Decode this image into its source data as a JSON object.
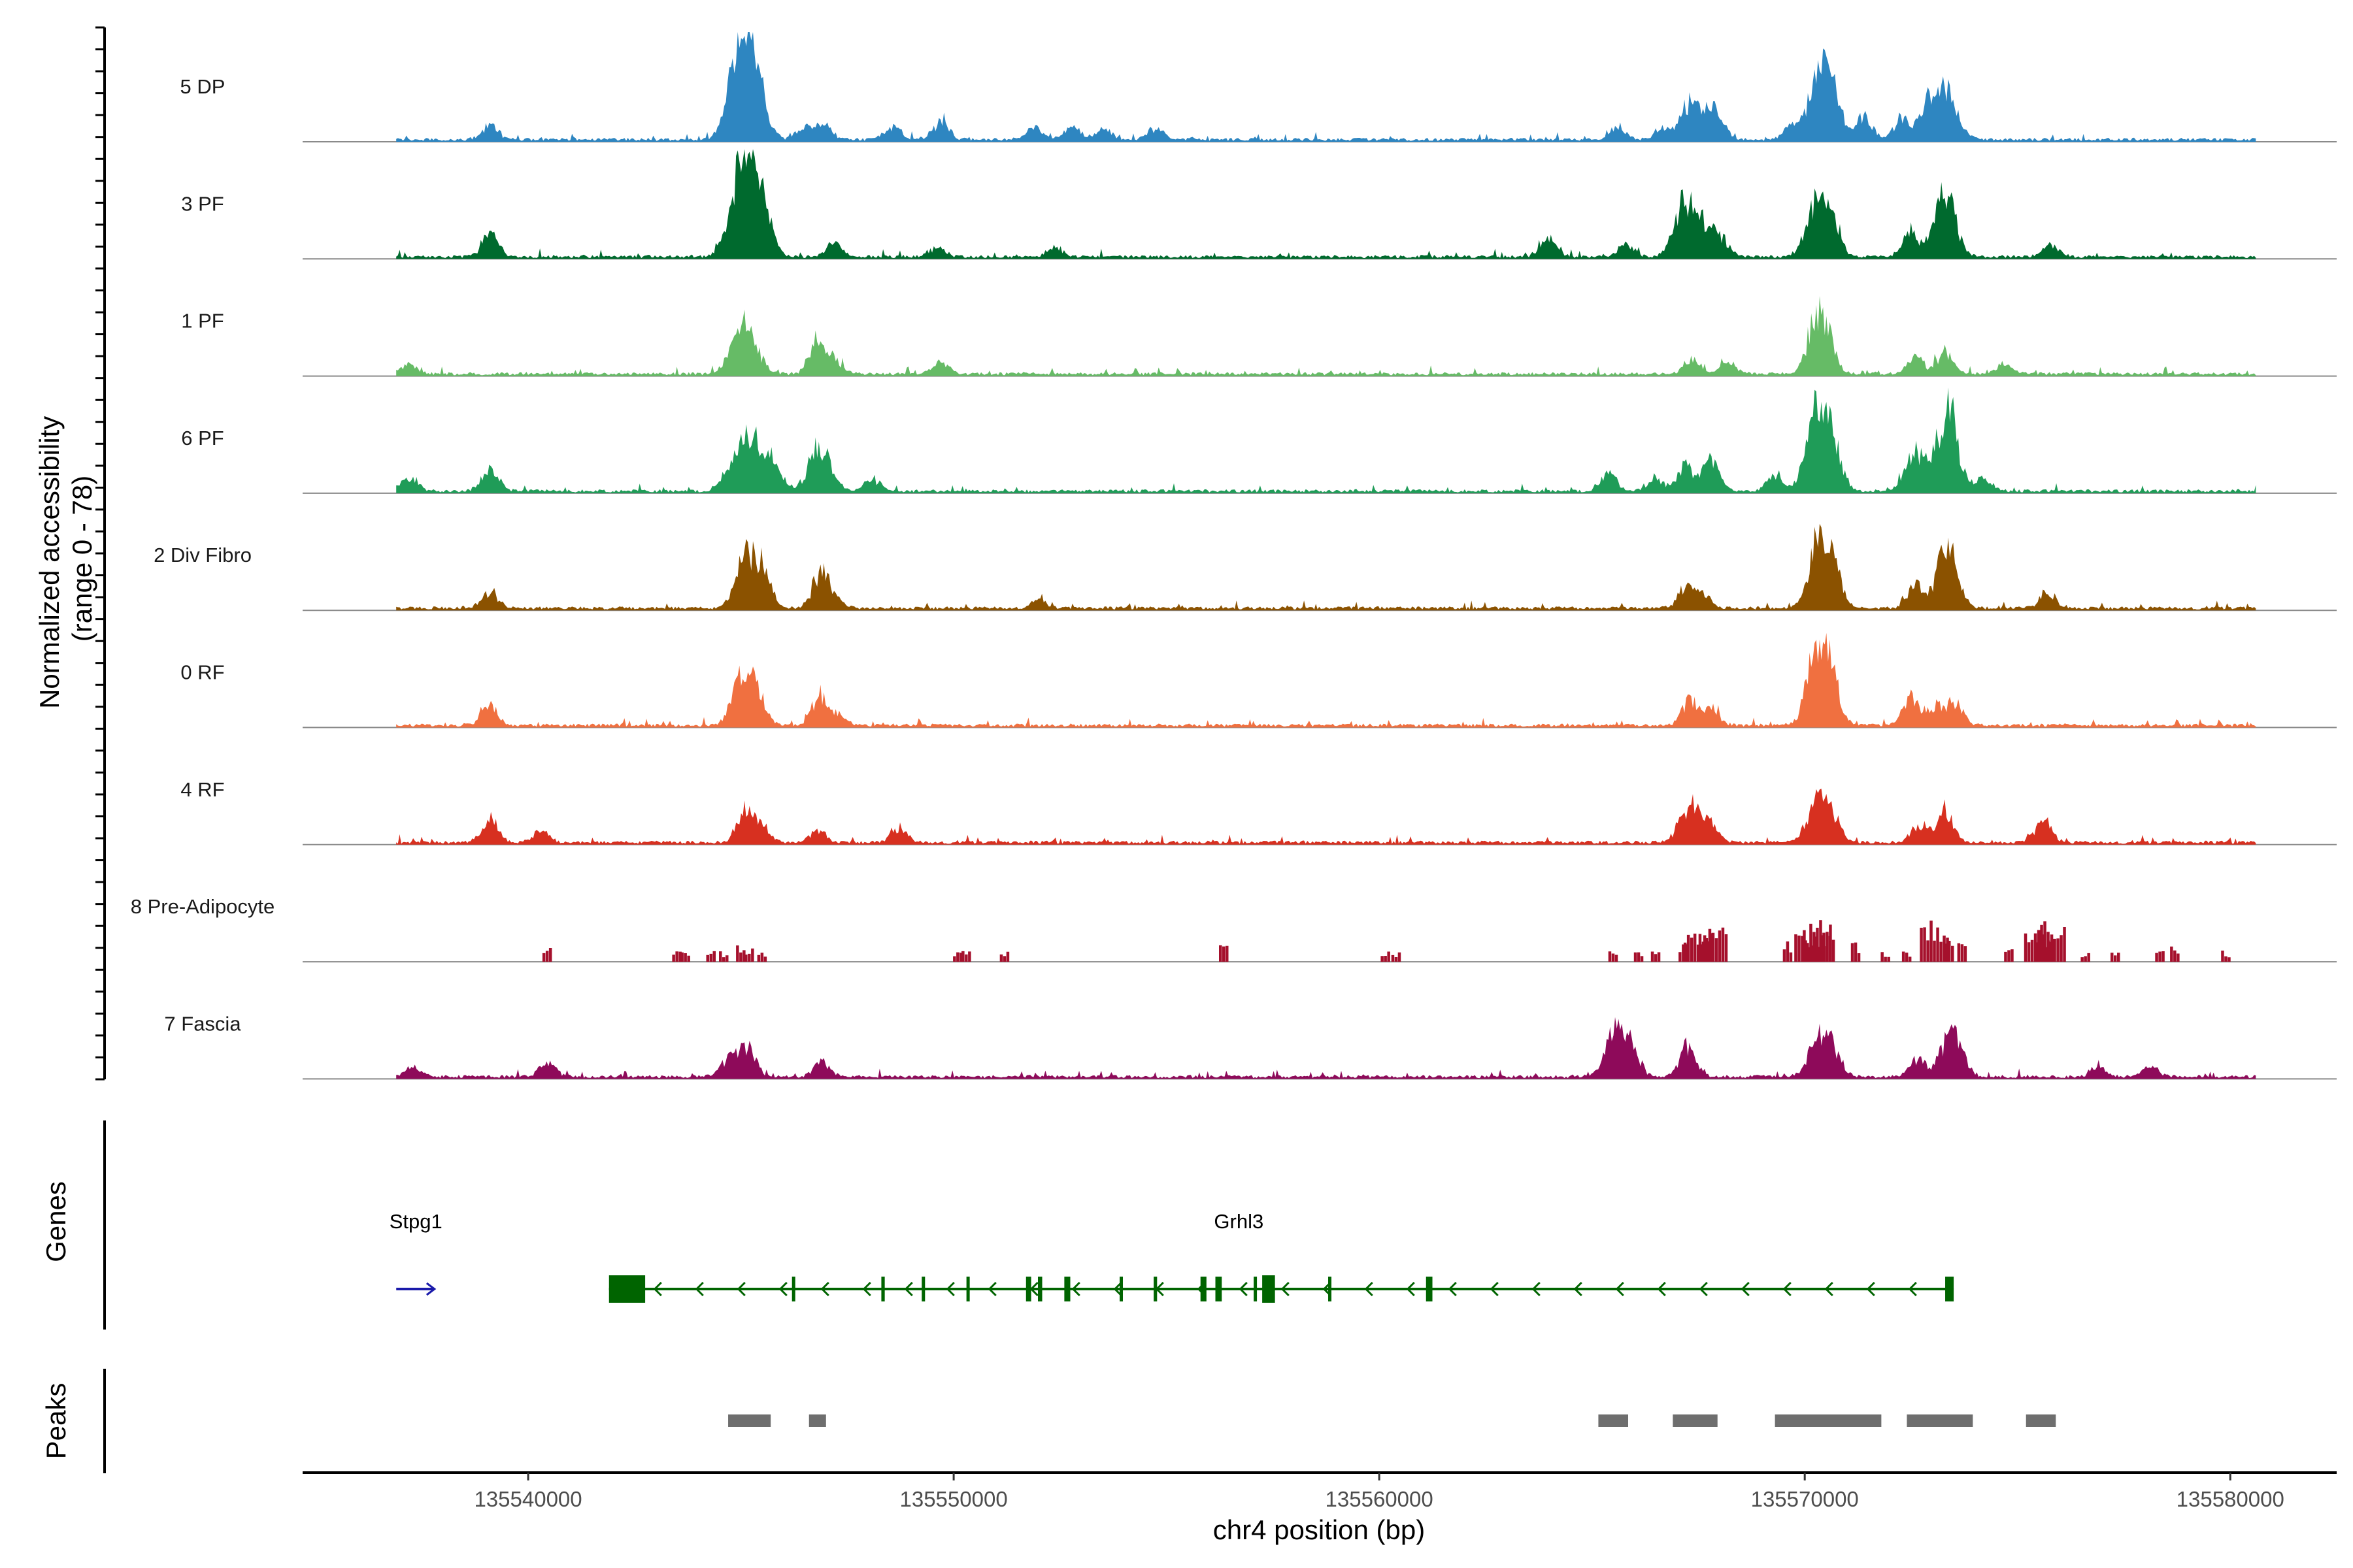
{
  "chart_data": {
    "type": "area",
    "region": {
      "chrom": "chr4",
      "start": 135534700,
      "end": 135582500
    },
    "ylabel_lines": [
      "Normalized accessibility",
      "(range 0 - 78)"
    ],
    "y_range": [
      0,
      78
    ],
    "xlabel": "chr4 position (bp)",
    "x_ticks": [
      135540000,
      135550000,
      135560000,
      135570000,
      135580000
    ],
    "x_tick_labels": [
      "135540000",
      "135550000",
      "135560000",
      "135570000",
      "135580000"
    ],
    "data_extent": [
      135536900,
      135580600
    ],
    "tracks": [
      {
        "name": "5 DP",
        "color": "#2e86c1",
        "sparse": false,
        "peaks": [
          [
            135539100,
            12
          ],
          [
            135544700,
            18
          ],
          [
            135545050,
            72
          ],
          [
            135545350,
            38
          ],
          [
            135546500,
            10
          ],
          [
            135546950,
            12
          ],
          [
            135548550,
            12
          ],
          [
            135549700,
            14
          ],
          [
            135551900,
            10
          ],
          [
            135552800,
            10
          ],
          [
            135553550,
            8
          ],
          [
            135554750,
            10
          ],
          [
            135565600,
            10
          ],
          [
            135566700,
            10
          ],
          [
            135567250,
            28
          ],
          [
            135567600,
            18
          ],
          [
            135567950,
            22
          ],
          [
            135569700,
            12
          ],
          [
            135570350,
            55
          ],
          [
            135570700,
            28
          ],
          [
            135571400,
            20
          ],
          [
            135572300,
            18
          ],
          [
            135572900,
            28
          ],
          [
            135573350,
            40
          ]
        ]
      },
      {
        "name": "3 PF",
        "color": "#006a2e",
        "sparse": false,
        "peaks": [
          [
            135539100,
            20
          ],
          [
            135544700,
            12
          ],
          [
            135545050,
            62
          ],
          [
            135545300,
            42
          ],
          [
            135545600,
            22
          ],
          [
            135547200,
            10
          ],
          [
            135549600,
            8
          ],
          [
            135552400,
            8
          ],
          [
            135564000,
            14
          ],
          [
            135565800,
            10
          ],
          [
            135567200,
            48
          ],
          [
            135567700,
            20
          ],
          [
            135568050,
            14
          ],
          [
            135570300,
            50
          ],
          [
            135570650,
            22
          ],
          [
            135572500,
            22
          ],
          [
            135573300,
            50
          ],
          [
            135575800,
            10
          ]
        ]
      },
      {
        "name": "1 PF",
        "color": "#66bb66",
        "sparse": false,
        "peaks": [
          [
            135537200,
            8
          ],
          [
            135545150,
            38
          ],
          [
            135544800,
            14
          ],
          [
            135546800,
            28
          ],
          [
            135547200,
            10
          ],
          [
            135549700,
            10
          ],
          [
            135567350,
            12
          ],
          [
            135568200,
            10
          ],
          [
            135570350,
            56
          ],
          [
            135572600,
            14
          ],
          [
            135573300,
            20
          ],
          [
            135574700,
            8
          ]
        ]
      },
      {
        "name": "6 PF",
        "color": "#1f9c58",
        "sparse": false,
        "peaks": [
          [
            135537200,
            10
          ],
          [
            135539100,
            20
          ],
          [
            135544700,
            14
          ],
          [
            135545050,
            28
          ],
          [
            135545400,
            34
          ],
          [
            135545800,
            16
          ],
          [
            135546850,
            40
          ],
          [
            135548100,
            10
          ],
          [
            135565400,
            14
          ],
          [
            135566500,
            10
          ],
          [
            135567200,
            22
          ],
          [
            135567800,
            28
          ],
          [
            135569300,
            14
          ],
          [
            135570300,
            72
          ],
          [
            135570700,
            30
          ],
          [
            135572600,
            32
          ],
          [
            135573350,
            70
          ],
          [
            135574200,
            10
          ]
        ]
      },
      {
        "name": "2 Div Fibro",
        "color": "#8b5200",
        "sparse": false,
        "peaks": [
          [
            135539100,
            14
          ],
          [
            135545000,
            30
          ],
          [
            135545400,
            42
          ],
          [
            135546850,
            28
          ],
          [
            135547200,
            8
          ],
          [
            135552000,
            6
          ],
          [
            135567200,
            16
          ],
          [
            135567600,
            12
          ],
          [
            135570350,
            56
          ],
          [
            135570700,
            22
          ],
          [
            135572600,
            18
          ],
          [
            135573350,
            48
          ],
          [
            135575700,
            14
          ]
        ]
      },
      {
        "name": "0 RF",
        "color": "#f07040",
        "sparse": false,
        "peaks": [
          [
            135539100,
            18
          ],
          [
            135545050,
            38
          ],
          [
            135545400,
            22
          ],
          [
            135546850,
            24
          ],
          [
            135547300,
            8
          ],
          [
            135567300,
            20
          ],
          [
            135567800,
            14
          ],
          [
            135570300,
            62
          ],
          [
            135570650,
            28
          ],
          [
            135572500,
            24
          ],
          [
            135573050,
            16
          ],
          [
            135573550,
            18
          ]
        ]
      },
      {
        "name": "4 RF",
        "color": "#d73020",
        "sparse": false,
        "peaks": [
          [
            135539100,
            20
          ],
          [
            135540300,
            10
          ],
          [
            135545100,
            28
          ],
          [
            135545500,
            12
          ],
          [
            135546800,
            10
          ],
          [
            135548700,
            12
          ],
          [
            135567300,
            32
          ],
          [
            135567800,
            16
          ],
          [
            135570300,
            34
          ],
          [
            135570700,
            14
          ],
          [
            135572700,
            16
          ],
          [
            135573300,
            26
          ],
          [
            135575600,
            20
          ]
        ]
      },
      {
        "name": "8 Pre-Adipocyte",
        "color": "#a5102c",
        "sparse": true,
        "peaks": [
          [
            135540450,
            14
          ],
          [
            135543500,
            8
          ],
          [
            135543700,
            8
          ],
          [
            135544300,
            8
          ],
          [
            135544600,
            8
          ],
          [
            135545000,
            14
          ],
          [
            135545200,
            12
          ],
          [
            135545500,
            8
          ],
          [
            135550100,
            8
          ],
          [
            135550300,
            8
          ],
          [
            135551200,
            8
          ],
          [
            135556350,
            14
          ],
          [
            135560150,
            8
          ],
          [
            135560400,
            8
          ],
          [
            135565500,
            8
          ],
          [
            135566100,
            8
          ],
          [
            135566500,
            8
          ],
          [
            135567150,
            14
          ],
          [
            135567500,
            22
          ],
          [
            135567850,
            30
          ],
          [
            135569600,
            16
          ],
          [
            135570100,
            26
          ],
          [
            135570300,
            30
          ],
          [
            135570600,
            20
          ],
          [
            135571200,
            14
          ],
          [
            135571900,
            8
          ],
          [
            135572400,
            8
          ],
          [
            135573050,
            30
          ],
          [
            135573400,
            20
          ],
          [
            135573700,
            16
          ],
          [
            135574800,
            14
          ],
          [
            135575500,
            24
          ],
          [
            135575800,
            32
          ],
          [
            135576600,
            8
          ],
          [
            135577300,
            8
          ],
          [
            135578350,
            12
          ],
          [
            135578700,
            12
          ],
          [
            135579900,
            8
          ]
        ]
      },
      {
        "name": "7 Fascia",
        "color": "#8e0a5a",
        "sparse": false,
        "peaks": [
          [
            135537300,
            8
          ],
          [
            135540450,
            12
          ],
          [
            135544700,
            14
          ],
          [
            135545150,
            24
          ],
          [
            135546900,
            12
          ],
          [
            135565550,
            36
          ],
          [
            135565950,
            20
          ],
          [
            135567250,
            24
          ],
          [
            135570350,
            32
          ],
          [
            135570700,
            14
          ],
          [
            135572650,
            14
          ],
          [
            135573450,
            36
          ],
          [
            135576900,
            8
          ],
          [
            135578100,
            8
          ]
        ]
      }
    ],
    "genes": [
      {
        "name": "Stpg1",
        "strand": "+",
        "color": "#1a1aaa",
        "start": 135536900,
        "end": 135537800
      },
      {
        "name": "Grhl3",
        "strand": "-",
        "color": "#006400",
        "start": 135541900,
        "end": 135573500,
        "label_pos": 135556700,
        "exons": [
          [
            135541900,
            135542750
          ],
          [
            135546200,
            135546260
          ],
          [
            135548300,
            135548380
          ],
          [
            135549250,
            135549320
          ],
          [
            135550300,
            135550340
          ],
          [
            135551700,
            135551820
          ],
          [
            135551980,
            135552080
          ],
          [
            135552600,
            135552740
          ],
          [
            135553900,
            135553960
          ],
          [
            135554700,
            135554780
          ],
          [
            135555800,
            135555940
          ],
          [
            135556150,
            135556300
          ],
          [
            135557050,
            135557100
          ],
          [
            135557250,
            135557550
          ],
          [
            135558800,
            135558840
          ],
          [
            135561100,
            135561250
          ],
          [
            135573300,
            135573500
          ]
        ]
      }
    ],
    "peak_regions": [
      [
        135544700,
        135545700
      ],
      [
        135546600,
        135547000
      ],
      [
        135565150,
        135565850
      ],
      [
        135566900,
        135567950
      ],
      [
        135569300,
        135571800
      ],
      [
        135572400,
        135573950
      ],
      [
        135575200,
        135575900
      ]
    ]
  },
  "side_titles": {
    "genes": "Genes",
    "peaks": "Peaks"
  }
}
